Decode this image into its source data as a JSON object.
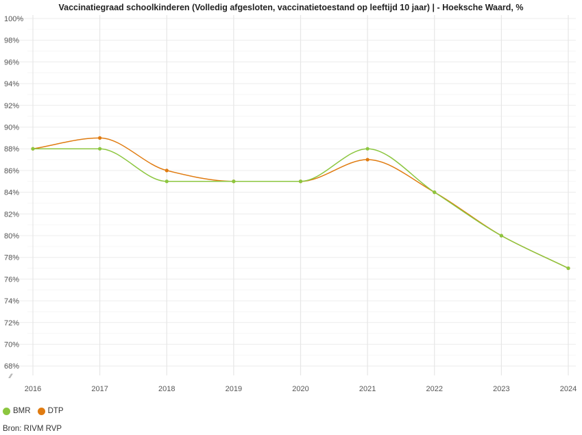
{
  "chart_data": {
    "type": "line",
    "title": "Vaccinatiegraad schoolkinderen (Volledig afgesloten, vaccinatietoestand op leeftijd 10 jaar) | - Hoeksche Waard, %",
    "xlabel": "",
    "ylabel": "",
    "x": [
      "2016",
      "2017",
      "2018",
      "2019",
      "2020",
      "2021",
      "2022",
      "2023",
      "2024"
    ],
    "ylim": [
      67,
      100
    ],
    "yticks": [
      68,
      70,
      72,
      74,
      76,
      78,
      80,
      82,
      84,
      86,
      88,
      90,
      92,
      94,
      96,
      98,
      100
    ],
    "ytick_labels": [
      "68%",
      "70%",
      "72%",
      "74%",
      "76%",
      "78%",
      "80%",
      "82%",
      "84%",
      "86%",
      "88%",
      "90%",
      "92%",
      "94%",
      "96%",
      "98%",
      "100%"
    ],
    "axis_break_symbol": "⁄⁄",
    "series": [
      {
        "name": "BMR",
        "color": "#8cc63f",
        "values": [
          88,
          88,
          85,
          85,
          85,
          88,
          84,
          80,
          77
        ]
      },
      {
        "name": "DTP",
        "color": "#e07b10",
        "values": [
          88,
          89,
          86,
          85,
          85,
          87,
          84,
          80,
          77
        ]
      }
    ],
    "grid": true,
    "legend": "bottom-left"
  },
  "legend": {
    "items": [
      {
        "label": "BMR",
        "color": "#8cc63f"
      },
      {
        "label": "DTP",
        "color": "#e07b10"
      }
    ]
  },
  "source": "Bron: RIVM RVP"
}
